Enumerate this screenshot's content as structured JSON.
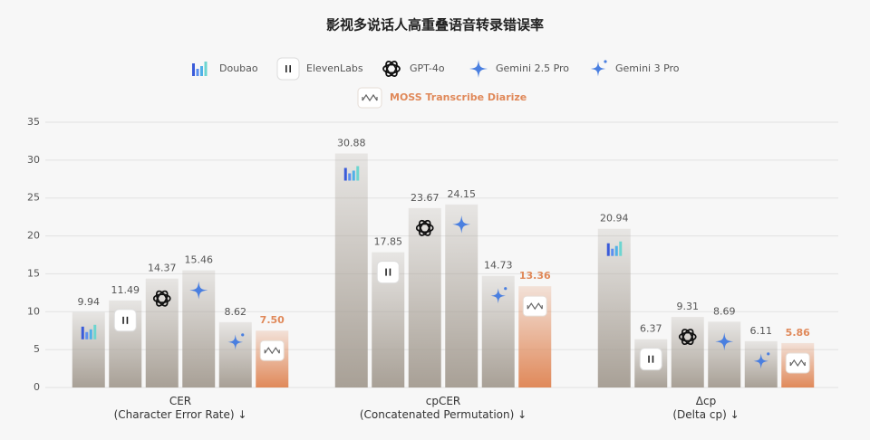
{
  "chart_data": {
    "type": "bar",
    "title": "影视多说话人高重叠语音转录错误率",
    "categories": [
      "CER\n(Character Error Rate) ↓",
      "cpCER\n(Concatenated Permutation) ↓",
      "Δcp\n(Delta cp) ↓"
    ],
    "series": [
      {
        "name": "Doubao",
        "color": "#a8a096",
        "values": [
          9.94,
          30.88,
          20.94
        ]
      },
      {
        "name": "ElevenLabs",
        "color": "#a8a096",
        "values": [
          11.49,
          17.85,
          6.37
        ]
      },
      {
        "name": "GPT-4o",
        "color": "#a8a096",
        "values": [
          14.37,
          23.67,
          9.31
        ]
      },
      {
        "name": "Gemini 2.5 Pro",
        "color": "#a8a096",
        "values": [
          15.46,
          24.15,
          8.69
        ]
      },
      {
        "name": "Gemini 3 Pro",
        "color": "#a8a096",
        "values": [
          8.62,
          14.73,
          6.11
        ]
      },
      {
        "name": "MOSS Transcribe Diarize",
        "color": "#e0895a",
        "highlight": true,
        "values": [
          7.5,
          13.36,
          5.86
        ],
        "value_labels": [
          "7.50",
          "13.36",
          "5.86"
        ]
      }
    ],
    "ylim": [
      0,
      35
    ],
    "yticks": [
      0,
      5,
      10,
      15,
      20,
      25,
      30,
      35
    ],
    "grid": true
  }
}
